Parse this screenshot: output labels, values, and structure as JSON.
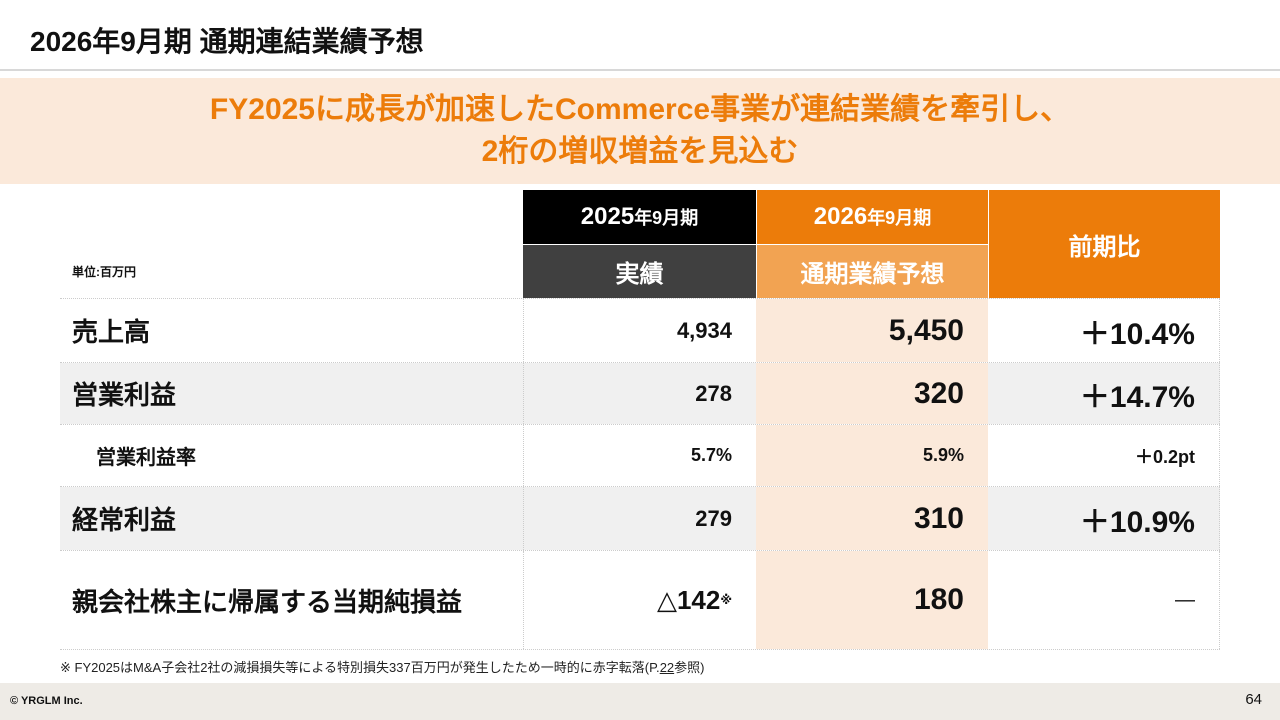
{
  "title": "2026年9月期 通期連結業績予想",
  "banner": {
    "line1": "FY2025に成長が加速したCommerce事業が連結業績を牽引し、",
    "line2": "2桁の増収増益を見込む"
  },
  "unit": "単位:百万円",
  "headers": {
    "col2_year": "2025",
    "col2_suffix": "年9月期",
    "col2_sub": "実績",
    "col3_year": "2026",
    "col3_suffix": "年9月期",
    "col3_sub": "通期業績予想",
    "col4": "前期比"
  },
  "rows": [
    {
      "label": "売上高",
      "fy2025": "4,934",
      "fy2026": "5,450",
      "change": "＋10.4%"
    },
    {
      "label": "営業利益",
      "fy2025": "278",
      "fy2026": "320",
      "change": "＋14.7%"
    },
    {
      "label": "営業利益率",
      "fy2025": "5.7%",
      "fy2026": "5.9%",
      "change": "＋0.2pt"
    },
    {
      "label": "経常利益",
      "fy2025": "279",
      "fy2026": "310",
      "change": "＋10.9%"
    },
    {
      "label": "親会社株主に帰属する当期純損益",
      "fy2025": "△142",
      "fy2025_mark": "※",
      "fy2026": "180",
      "change": "―"
    }
  ],
  "note": {
    "text": "※ FY2025はM&A子会社2社の減損損失等による特別損失337百万円が発生したため一時的に赤字転落(P.",
    "link": "22",
    "end": "参照)"
  },
  "footer": {
    "copyright": "© YRGLM Inc.",
    "page": "64"
  }
}
